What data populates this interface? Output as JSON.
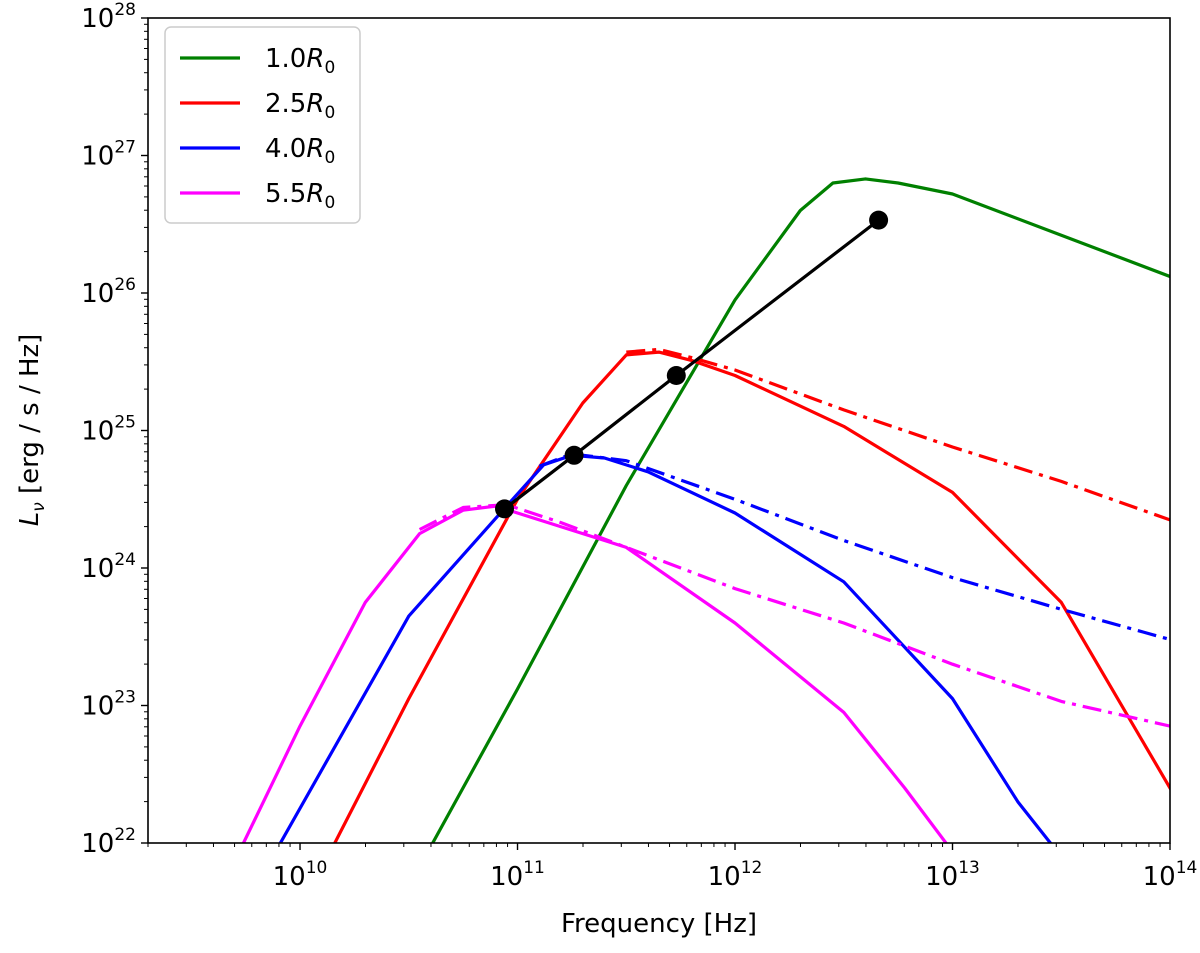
{
  "chart_data": {
    "type": "line",
    "title": "",
    "xlabel": "Frequency [Hz]",
    "ylabel_main": "L",
    "ylabel_sub": "ν",
    "ylabel_rest": " [erg / s / Hz]",
    "xscale": "log",
    "yscale": "log",
    "xlim": [
      2000000000.0,
      100000000000000.0
    ],
    "ylim": [
      1e+22,
      1e+28
    ],
    "x_ticks": [
      {
        "exp": 10,
        "base": "10",
        "sup": "10"
      },
      {
        "exp": 11,
        "base": "10",
        "sup": "11"
      },
      {
        "exp": 12,
        "base": "10",
        "sup": "12"
      },
      {
        "exp": 13,
        "base": "10",
        "sup": "13"
      },
      {
        "exp": 14,
        "base": "10",
        "sup": "14"
      }
    ],
    "y_ticks": [
      {
        "exp": 22,
        "base": "10",
        "sup": "22"
      },
      {
        "exp": 23,
        "base": "10",
        "sup": "23"
      },
      {
        "exp": 24,
        "base": "10",
        "sup": "24"
      },
      {
        "exp": 25,
        "base": "10",
        "sup": "25"
      },
      {
        "exp": 26,
        "base": "10",
        "sup": "26"
      },
      {
        "exp": 27,
        "base": "10",
        "sup": "27"
      },
      {
        "exp": 28,
        "base": "10",
        "sup": "28"
      }
    ],
    "legend_placement": "top-left",
    "series": [
      {
        "name": "1.0R0",
        "label_main": "1.0",
        "label_var": "R",
        "label_sub": "0",
        "color": "#008000",
        "solid_log": [
          [
            10.61,
            22
          ],
          [
            11,
            23.12
          ],
          [
            11.5,
            24.6
          ],
          [
            12,
            25.95
          ],
          [
            12.3,
            26.6
          ],
          [
            12.45,
            26.8
          ],
          [
            12.6,
            26.83
          ],
          [
            12.75,
            26.8
          ],
          [
            13,
            26.72
          ],
          [
            13.5,
            26.42
          ],
          [
            14,
            26.12
          ]
        ],
        "dashdot_log": []
      },
      {
        "name": "2.5R0",
        "label_main": "2.5",
        "label_var": "R",
        "label_sub": "0",
        "color": "#ff0000",
        "solid_log": [
          [
            10.16,
            22
          ],
          [
            10.5,
            23.05
          ],
          [
            11,
            24.5
          ],
          [
            11.3,
            25.2
          ],
          [
            11.5,
            25.55
          ],
          [
            11.65,
            25.57
          ],
          [
            11.8,
            25.51
          ],
          [
            12,
            25.4
          ],
          [
            12.5,
            25.03
          ],
          [
            13,
            24.55
          ],
          [
            13.5,
            23.75
          ],
          [
            14,
            22.4
          ]
        ],
        "dashdot_log": [
          [
            11.5,
            25.57
          ],
          [
            11.65,
            25.59
          ],
          [
            11.8,
            25.53
          ],
          [
            12,
            25.44
          ],
          [
            12.5,
            25.15
          ],
          [
            13,
            24.88
          ],
          [
            13.5,
            24.63
          ],
          [
            14,
            24.35
          ]
        ]
      },
      {
        "name": "4.0R0",
        "label_main": "4.0",
        "label_var": "R",
        "label_sub": "0",
        "color": "#0000ff",
        "solid_log": [
          [
            9.91,
            22
          ],
          [
            10.5,
            23.65
          ],
          [
            10.95,
            24.45
          ],
          [
            11.12,
            24.75
          ],
          [
            11.25,
            24.82
          ],
          [
            11.4,
            24.8
          ],
          [
            11.6,
            24.7
          ],
          [
            12,
            24.4
          ],
          [
            12.5,
            23.9
          ],
          [
            13,
            23.05
          ],
          [
            13.3,
            22.3
          ],
          [
            13.45,
            22
          ]
        ],
        "dashdot_log": [
          [
            11.1,
            24.74
          ],
          [
            11.25,
            24.83
          ],
          [
            11.5,
            24.78
          ],
          [
            12,
            24.5
          ],
          [
            12.5,
            24.2
          ],
          [
            13,
            23.93
          ],
          [
            13.5,
            23.7
          ],
          [
            14,
            23.48
          ]
        ]
      },
      {
        "name": "5.5R0",
        "label_main": "5.5",
        "label_var": "R",
        "label_sub": "0",
        "color": "#ff00ff",
        "solid_log": [
          [
            9.74,
            22
          ],
          [
            10,
            22.85
          ],
          [
            10.3,
            23.75
          ],
          [
            10.55,
            24.25
          ],
          [
            10.75,
            24.42
          ],
          [
            10.9,
            24.45
          ],
          [
            11,
            24.4
          ],
          [
            11.5,
            24.15
          ],
          [
            12,
            23.6
          ],
          [
            12.5,
            22.95
          ],
          [
            12.78,
            22.4
          ],
          [
            12.97,
            22
          ]
        ],
        "dashdot_log": [
          [
            10.55,
            24.28
          ],
          [
            10.75,
            24.44
          ],
          [
            10.95,
            24.46
          ],
          [
            11.2,
            24.33
          ],
          [
            11.5,
            24.15
          ],
          [
            12,
            23.85
          ],
          [
            12.5,
            23.6
          ],
          [
            13,
            23.3
          ],
          [
            13.5,
            23.03
          ],
          [
            14,
            22.85
          ]
        ]
      }
    ],
    "peak_line": {
      "color": "#000000",
      "points_log": [
        [
          10.94,
          24.43
        ],
        [
          11.26,
          24.82
        ],
        [
          11.73,
          25.4
        ],
        [
          12.66,
          26.53
        ]
      ]
    }
  }
}
